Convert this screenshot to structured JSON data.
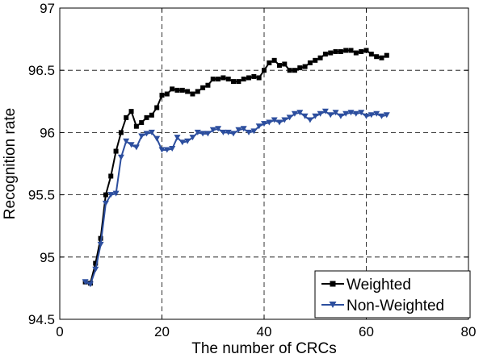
{
  "chart_data": {
    "type": "line",
    "title": "",
    "xlabel": "The number of CRCs",
    "ylabel": "Recognition rate",
    "xlim": [
      0,
      80
    ],
    "ylim": [
      94.5,
      97
    ],
    "xticks": [
      0,
      20,
      40,
      60,
      80
    ],
    "yticks": [
      94.5,
      95,
      95.5,
      96,
      96.5,
      97
    ],
    "grid": true,
    "legend_position": "bottom-right",
    "series": [
      {
        "name": "Weighted",
        "color": "#000000",
        "marker": "square",
        "x": [
          5,
          6,
          7,
          8,
          9,
          10,
          11,
          12,
          13,
          14,
          15,
          16,
          17,
          18,
          19,
          20,
          21,
          22,
          23,
          24,
          25,
          26,
          27,
          28,
          29,
          30,
          31,
          32,
          33,
          34,
          35,
          36,
          37,
          38,
          39,
          40,
          41,
          42,
          43,
          44,
          45,
          46,
          47,
          48,
          49,
          50,
          51,
          52,
          53,
          54,
          55,
          56,
          57,
          58,
          59,
          60,
          61,
          62,
          63,
          64
        ],
        "y": [
          94.8,
          94.79,
          94.95,
          95.15,
          95.5,
          95.65,
          95.85,
          96.0,
          96.12,
          96.17,
          96.05,
          96.08,
          96.12,
          96.14,
          96.2,
          96.3,
          96.31,
          96.35,
          96.34,
          96.34,
          96.33,
          96.31,
          96.33,
          96.36,
          96.38,
          96.43,
          96.43,
          96.44,
          96.43,
          96.41,
          96.41,
          96.43,
          96.44,
          96.45,
          96.44,
          96.5,
          96.56,
          96.58,
          96.54,
          96.55,
          96.5,
          96.5,
          96.52,
          96.53,
          96.56,
          96.58,
          96.6,
          96.63,
          96.64,
          96.65,
          96.65,
          96.66,
          96.66,
          96.64,
          96.65,
          96.66,
          96.63,
          96.61,
          96.6,
          96.62
        ]
      },
      {
        "name": "Non-Weighted",
        "color": "#2c4e9e",
        "marker": "triangle-down",
        "x": [
          5,
          6,
          7,
          8,
          9,
          10,
          11,
          12,
          13,
          14,
          15,
          16,
          17,
          18,
          19,
          20,
          21,
          22,
          23,
          24,
          25,
          26,
          27,
          28,
          29,
          30,
          31,
          32,
          33,
          34,
          35,
          36,
          37,
          38,
          39,
          40,
          41,
          42,
          43,
          44,
          45,
          46,
          47,
          48,
          49,
          50,
          51,
          52,
          53,
          54,
          55,
          56,
          57,
          58,
          59,
          60,
          61,
          62,
          63,
          64
        ],
        "y": [
          94.8,
          94.78,
          94.9,
          95.1,
          95.43,
          95.5,
          95.51,
          95.8,
          95.93,
          95.9,
          95.88,
          95.97,
          95.99,
          96.0,
          95.95,
          95.86,
          95.86,
          95.87,
          95.96,
          95.92,
          95.93,
          95.96,
          96.0,
          95.99,
          95.99,
          96.02,
          96.03,
          96.0,
          96.0,
          95.99,
          96.02,
          96.03,
          96.0,
          96.01,
          96.05,
          96.07,
          96.08,
          96.1,
          96.08,
          96.1,
          96.12,
          96.15,
          96.16,
          96.13,
          96.1,
          96.13,
          96.15,
          96.17,
          96.14,
          96.16,
          96.13,
          96.15,
          96.16,
          96.15,
          96.16,
          96.13,
          96.14,
          96.15,
          96.13,
          96.14
        ]
      }
    ]
  }
}
